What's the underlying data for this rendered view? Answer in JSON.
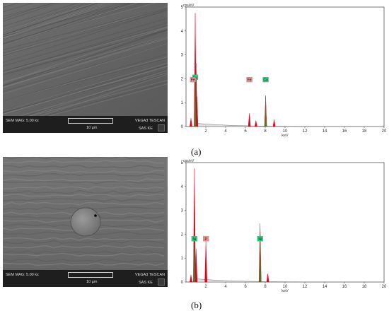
{
  "panels": [
    {
      "caption": "(a)",
      "sem": {
        "mag_label": "SEM MAG: 5.00 kx",
        "instrument": "VEGA3 TESCAN",
        "institution": "SAS KE",
        "scale_bar": "10 µm",
        "feature": "scratches"
      },
      "chart_data": {
        "type": "line",
        "ylabel": "cps/eV",
        "xlabel": "keV",
        "xlim": [
          0,
          20
        ],
        "ylim": [
          0,
          5
        ],
        "xticks": [
          2,
          4,
          6,
          8,
          10,
          12,
          14,
          16,
          18,
          20
        ],
        "yticks": [
          0,
          1,
          2,
          3,
          4,
          5
        ],
        "series": [
          {
            "color": "#e0001a",
            "x": [
              0.5,
              0.93,
              1.02,
              1.1,
              6.4,
              7.06,
              8.04,
              8.9
            ],
            "values": [
              0.35,
              4.75,
              2.65,
              1.25,
              0.55,
              0.25,
              1.25,
              0.3
            ]
          },
          {
            "color": "#2e8b2e",
            "x": [
              0.93,
              8.04
            ],
            "values": [
              1.95,
              1.3
            ]
          }
        ],
        "annotations": [
          {
            "label": "Cu",
            "x": 0.93,
            "y": 2.05,
            "color": "#29d07a"
          },
          {
            "label": "Fe",
            "x": 0.7,
            "y": 1.95,
            "color": "#f08a8a"
          },
          {
            "label": "Fe",
            "x": 6.4,
            "y": 1.95,
            "color": "#f08a8a"
          },
          {
            "label": "Cu",
            "x": 8.04,
            "y": 1.95,
            "color": "#29d07a"
          }
        ]
      }
    },
    {
      "caption": "(b)",
      "sem": {
        "mag_label": "SEM MAG: 5.00 kx",
        "instrument": "VEGA3 TESCAN",
        "institution": "SAS KE",
        "scale_bar": "10 µm",
        "feature": "particle"
      },
      "chart_data": {
        "type": "line",
        "ylabel": "cps/eV",
        "xlabel": "keV",
        "xlim": [
          0,
          20
        ],
        "ylim": [
          0,
          5
        ],
        "xticks": [
          2,
          4,
          6,
          8,
          10,
          12,
          14,
          16,
          18,
          20
        ],
        "yticks": [
          0,
          1,
          2,
          3,
          4,
          5
        ],
        "series": [
          {
            "color": "#e0001a",
            "x": [
              0.5,
              0.85,
              1.02,
              2.01,
              7.48,
              8.26
            ],
            "values": [
              0.3,
              4.75,
              1.4,
              1.7,
              2.45,
              0.35
            ]
          },
          {
            "color": "#2e8b2e",
            "x": [
              0.85,
              7.48
            ],
            "values": [
              1.65,
              2.3
            ]
          }
        ],
        "annotations": [
          {
            "label": "Ni",
            "x": 0.85,
            "y": 1.8,
            "color": "#29d07a"
          },
          {
            "label": "P",
            "x": 2.01,
            "y": 1.8,
            "color": "#f08a8a"
          },
          {
            "label": "Ni",
            "x": 7.48,
            "y": 1.8,
            "color": "#29d07a"
          }
        ]
      }
    }
  ]
}
